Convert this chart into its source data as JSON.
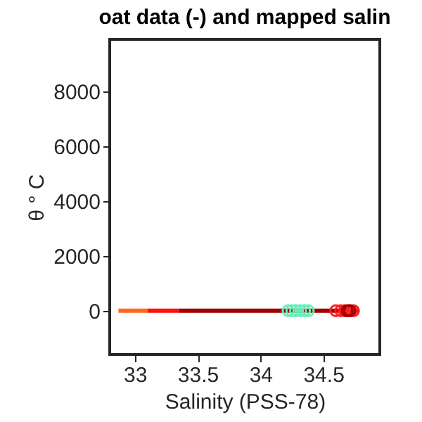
{
  "chart_data": {
    "type": "line",
    "title": "oat data (-) and mapped salin",
    "xlabel": "Salinity (PSS-78)",
    "ylabel": "θ ° C",
    "xlim": [
      32.8,
      34.95
    ],
    "xticks": [
      33,
      33.5,
      34,
      34.5
    ],
    "ylim": [
      -1600,
      9900
    ],
    "yticks": [
      0,
      2000,
      4000,
      6000,
      8000
    ],
    "grid": false,
    "line_style": "solid",
    "series": [
      {
        "color": "#ff6a1a",
        "marker": "none",
        "x": [
          32.87,
          33.1
        ],
        "values": [
          0,
          0
        ]
      },
      {
        "color": "#ff1010",
        "marker": "none",
        "x": [
          33.1,
          33.35
        ],
        "values": [
          0,
          0
        ]
      },
      {
        "color": "#a00000",
        "marker": "none",
        "x": [
          33.35,
          34.78
        ],
        "values": [
          0,
          0
        ]
      },
      {
        "type": "scatter",
        "marker": "circle",
        "color": "#66eebb",
        "x": [
          34.22,
          34.25,
          34.28,
          34.32,
          34.35,
          34.38
        ],
        "values": [
          0,
          0,
          0,
          0,
          0,
          0
        ]
      },
      {
        "type": "scatter",
        "marker": "circle",
        "color": "#ff2020",
        "x": [
          34.6,
          34.64,
          34.67,
          34.7,
          34.72,
          34.74
        ],
        "values": [
          0,
          0,
          0,
          0,
          0,
          0
        ]
      },
      {
        "type": "scatter",
        "marker": "circle",
        "color": "#a00000",
        "x": [
          34.69,
          34.71
        ],
        "values": [
          0,
          0
        ]
      }
    ]
  }
}
